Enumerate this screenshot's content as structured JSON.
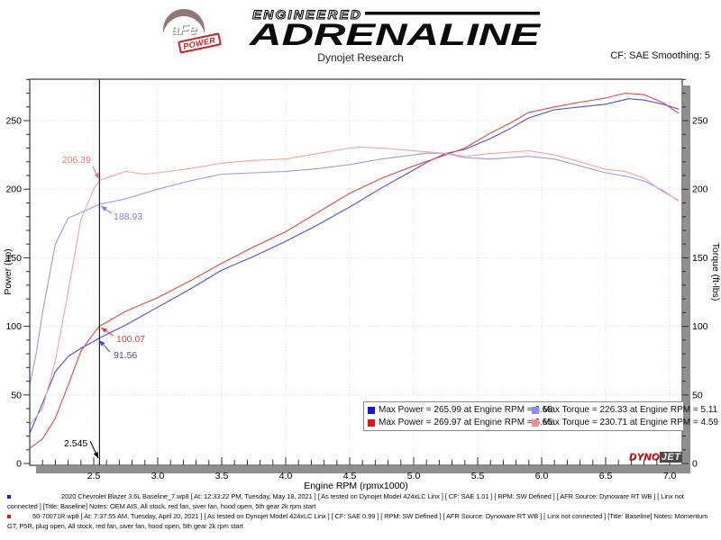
{
  "branding": {
    "afe_circle_text": "aFe",
    "afe_power_text": "POWER",
    "engineered": "ENGINEERED",
    "adrenaline": "ADRENALINE",
    "dynojet_dyno": "DYNO",
    "dynojet_jet": "JET"
  },
  "header": {
    "title": "Dynojet Research",
    "cf_label": "CF: SAE Smoothing: 5"
  },
  "chart_data": {
    "type": "line",
    "xlabel": "Engine RPM (rpmx1000)",
    "ylabel_left": "Power (hp)",
    "ylabel_right": "Torque (ft-lbs)",
    "xlim": [
      2.0,
      7.1
    ],
    "ylim": [
      0,
      280
    ],
    "x_ticks": [
      2.5,
      3.0,
      3.5,
      4.0,
      4.5,
      5.0,
      5.5,
      6.0,
      6.5,
      7.0
    ],
    "y_ticks": [
      0,
      50,
      100,
      150,
      200,
      250
    ],
    "x_minor_step": 0.1,
    "y_minor_step": 10,
    "grid": "dotted",
    "cursor_rpm": 2.545,
    "series": [
      {
        "name": "power-baseline",
        "axis": "left",
        "color": "#4f4fd6",
        "x": [
          2.0,
          2.1,
          2.2,
          2.3,
          2.4,
          2.5,
          2.545,
          2.75,
          3.0,
          3.25,
          3.5,
          3.75,
          4.0,
          4.25,
          4.5,
          4.75,
          5.0,
          5.11,
          5.25,
          5.4,
          5.6,
          5.75,
          5.9,
          6.1,
          6.3,
          6.5,
          6.68,
          6.8,
          6.95,
          7.07
        ],
        "y": [
          22,
          44,
          67,
          78,
          84,
          89,
          91.56,
          101,
          114,
          127,
          141,
          151,
          162,
          174,
          187,
          201,
          214,
          220,
          226,
          229,
          237,
          244,
          252,
          258,
          260,
          262,
          265.99,
          265,
          262,
          258.5
        ]
      },
      {
        "name": "power-intake",
        "axis": "left",
        "color": "#e04848",
        "x": [
          2.0,
          2.1,
          2.2,
          2.3,
          2.4,
          2.5,
          2.545,
          2.75,
          3.0,
          3.25,
          3.5,
          3.75,
          4.0,
          4.25,
          4.5,
          4.75,
          5.0,
          5.25,
          5.4,
          5.6,
          5.75,
          5.9,
          6.1,
          6.3,
          6.5,
          6.65,
          6.8,
          6.95,
          7.07
        ],
        "y": [
          11,
          18,
          33,
          57,
          82,
          95,
          100.07,
          111,
          121,
          133,
          146,
          158,
          169,
          183,
          197,
          208,
          217,
          225,
          230,
          241,
          248,
          256,
          260,
          263.5,
          266.5,
          269.97,
          269,
          263,
          255.5
        ]
      },
      {
        "name": "torque-baseline",
        "axis": "right",
        "color": "#9a9ae8",
        "x": [
          2.0,
          2.05,
          2.1,
          2.2,
          2.3,
          2.4,
          2.5,
          2.545,
          2.75,
          3.0,
          3.25,
          3.5,
          3.75,
          4.0,
          4.25,
          4.5,
          4.75,
          5.0,
          5.11,
          5.25,
          5.4,
          5.6,
          5.75,
          5.9,
          6.1,
          6.3,
          6.5,
          6.68,
          6.8,
          6.95,
          7.07
        ],
        "y": [
          57,
          80,
          110,
          160,
          179,
          183,
          187,
          188.93,
          193,
          200,
          206,
          211,
          212,
          213,
          215,
          218,
          222,
          225,
          226.33,
          226,
          223,
          222,
          223,
          224,
          222,
          217,
          212,
          209,
          206,
          199,
          191.5
        ]
      },
      {
        "name": "torque-intake",
        "axis": "right",
        "color": "#f4a2a2",
        "x": [
          2.0,
          2.1,
          2.2,
          2.3,
          2.4,
          2.5,
          2.545,
          2.75,
          2.9,
          3.0,
          3.25,
          3.5,
          3.75,
          4.0,
          4.25,
          4.5,
          4.59,
          4.75,
          5.0,
          5.25,
          5.4,
          5.6,
          5.75,
          5.9,
          6.1,
          6.3,
          6.5,
          6.65,
          6.8,
          6.95,
          7.07
        ],
        "y": [
          28,
          40,
          75,
          125,
          178,
          200,
          206.39,
          213,
          211,
          212,
          215,
          219,
          221,
          222,
          226,
          230,
          230.71,
          230,
          228,
          226,
          224,
          226,
          227,
          228,
          225,
          220,
          214.5,
          213,
          208,
          198,
          192
        ]
      }
    ],
    "annotations": [
      {
        "id": "torque-intake-at-cursor",
        "text": "206.39",
        "color": "#e87070"
      },
      {
        "id": "torque-baseline-at-cursor",
        "text": "188.93",
        "color": "#7d7de4"
      },
      {
        "id": "power-intake-at-cursor",
        "text": "100.07",
        "color": "#dc3c3c"
      },
      {
        "id": "power-baseline-at-cursor",
        "text": "91.56",
        "color": "#4444cc"
      },
      {
        "id": "cursor-rpm",
        "text": "2.545",
        "color": "#000000"
      }
    ]
  },
  "legend": {
    "items": [
      {
        "swatch": "#1414e6",
        "label": "Max Power = 265.99 at Engine RPM = 6.68"
      },
      {
        "swatch": "#8c8cff",
        "label": "Max Torque = 226.33 at Engine RPM = 5.11"
      },
      {
        "swatch": "#e61414",
        "label": "Max Power = 269.97 at Engine RPM = 6.65"
      },
      {
        "swatch": "#ff8c8c",
        "label": "Max Torque = 230.71 at Engine RPM = 4.59"
      }
    ]
  },
  "footnotes": [
    {
      "bullet_color": "#2222cc",
      "text": "2020 Chevrolet Blazer 3.6L Baseline_7.wp8 [ At: 12:33:22 PM, Tuesday, May 18, 2021 ] [ As tested on Dynojet Model 424xLC Linx ] [ CF: SAE 1.01 ] [ RPM: SW Defined ] [ AFR Source: Dynoware RT WB ] [ Linx not connected ] [Title: Baseline]  Notes: OEM AIS, All stock, red fan, siver fan, hood open, 5th gear 2k rpm start"
    },
    {
      "bullet_color": "#cc2222",
      "text": "50-70071R.wp8 [ At: 7:37:55 AM, Tuesday, April 20, 2021 ] [ As tested on Dynojet Model 424xLC Linx ] [ CF: SAE 0.99 ] [ RPM: SW Defined ] [ AFR Source: Dynoware RT WB ] [ Linx not connected ] [Title: Baseline]  Notes: Momentum GT, P5R, plug open, All stock, red fan, siver fan, hood open, 5th gear 2k rpm start"
    }
  ]
}
